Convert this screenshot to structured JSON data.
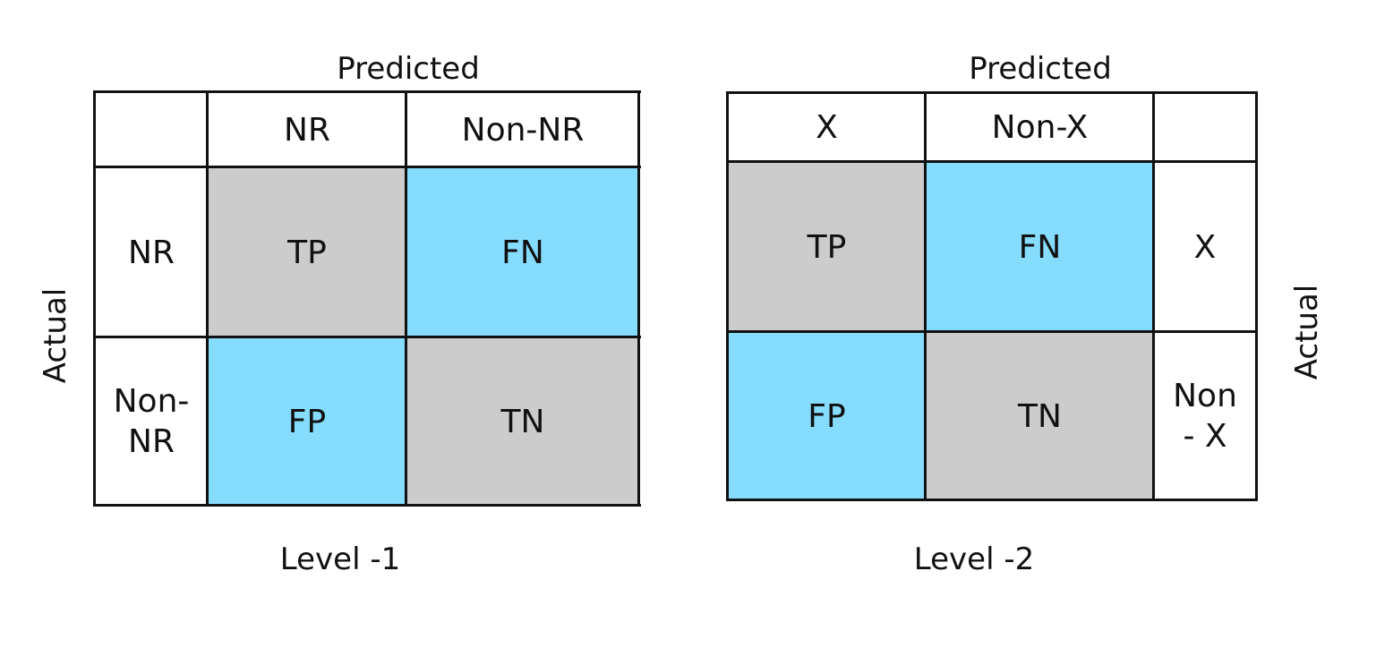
{
  "level1": {
    "top_label": "Predicted",
    "side_label": "Actual",
    "bottom_label": "Level -1",
    "col_headers": [
      "NR",
      "Non-NR"
    ],
    "row_headers": [
      "NR",
      "Non-\nNR"
    ],
    "cells": [
      [
        "TP",
        "FN"
      ],
      [
        "FP",
        "TN"
      ]
    ]
  },
  "level2": {
    "top_label": "Predicted",
    "side_label": "Actual",
    "bottom_label": "Level -2",
    "col_headers": [
      "X",
      "Non-X"
    ],
    "row_headers": [
      "X",
      "Non\n- X"
    ],
    "cells": [
      [
        "TP",
        "FN"
      ],
      [
        "FP",
        "TN"
      ]
    ]
  },
  "colors": {
    "true_cell": "#cccccc",
    "false_cell": "#85dcfd",
    "grid_line": "#111111"
  }
}
